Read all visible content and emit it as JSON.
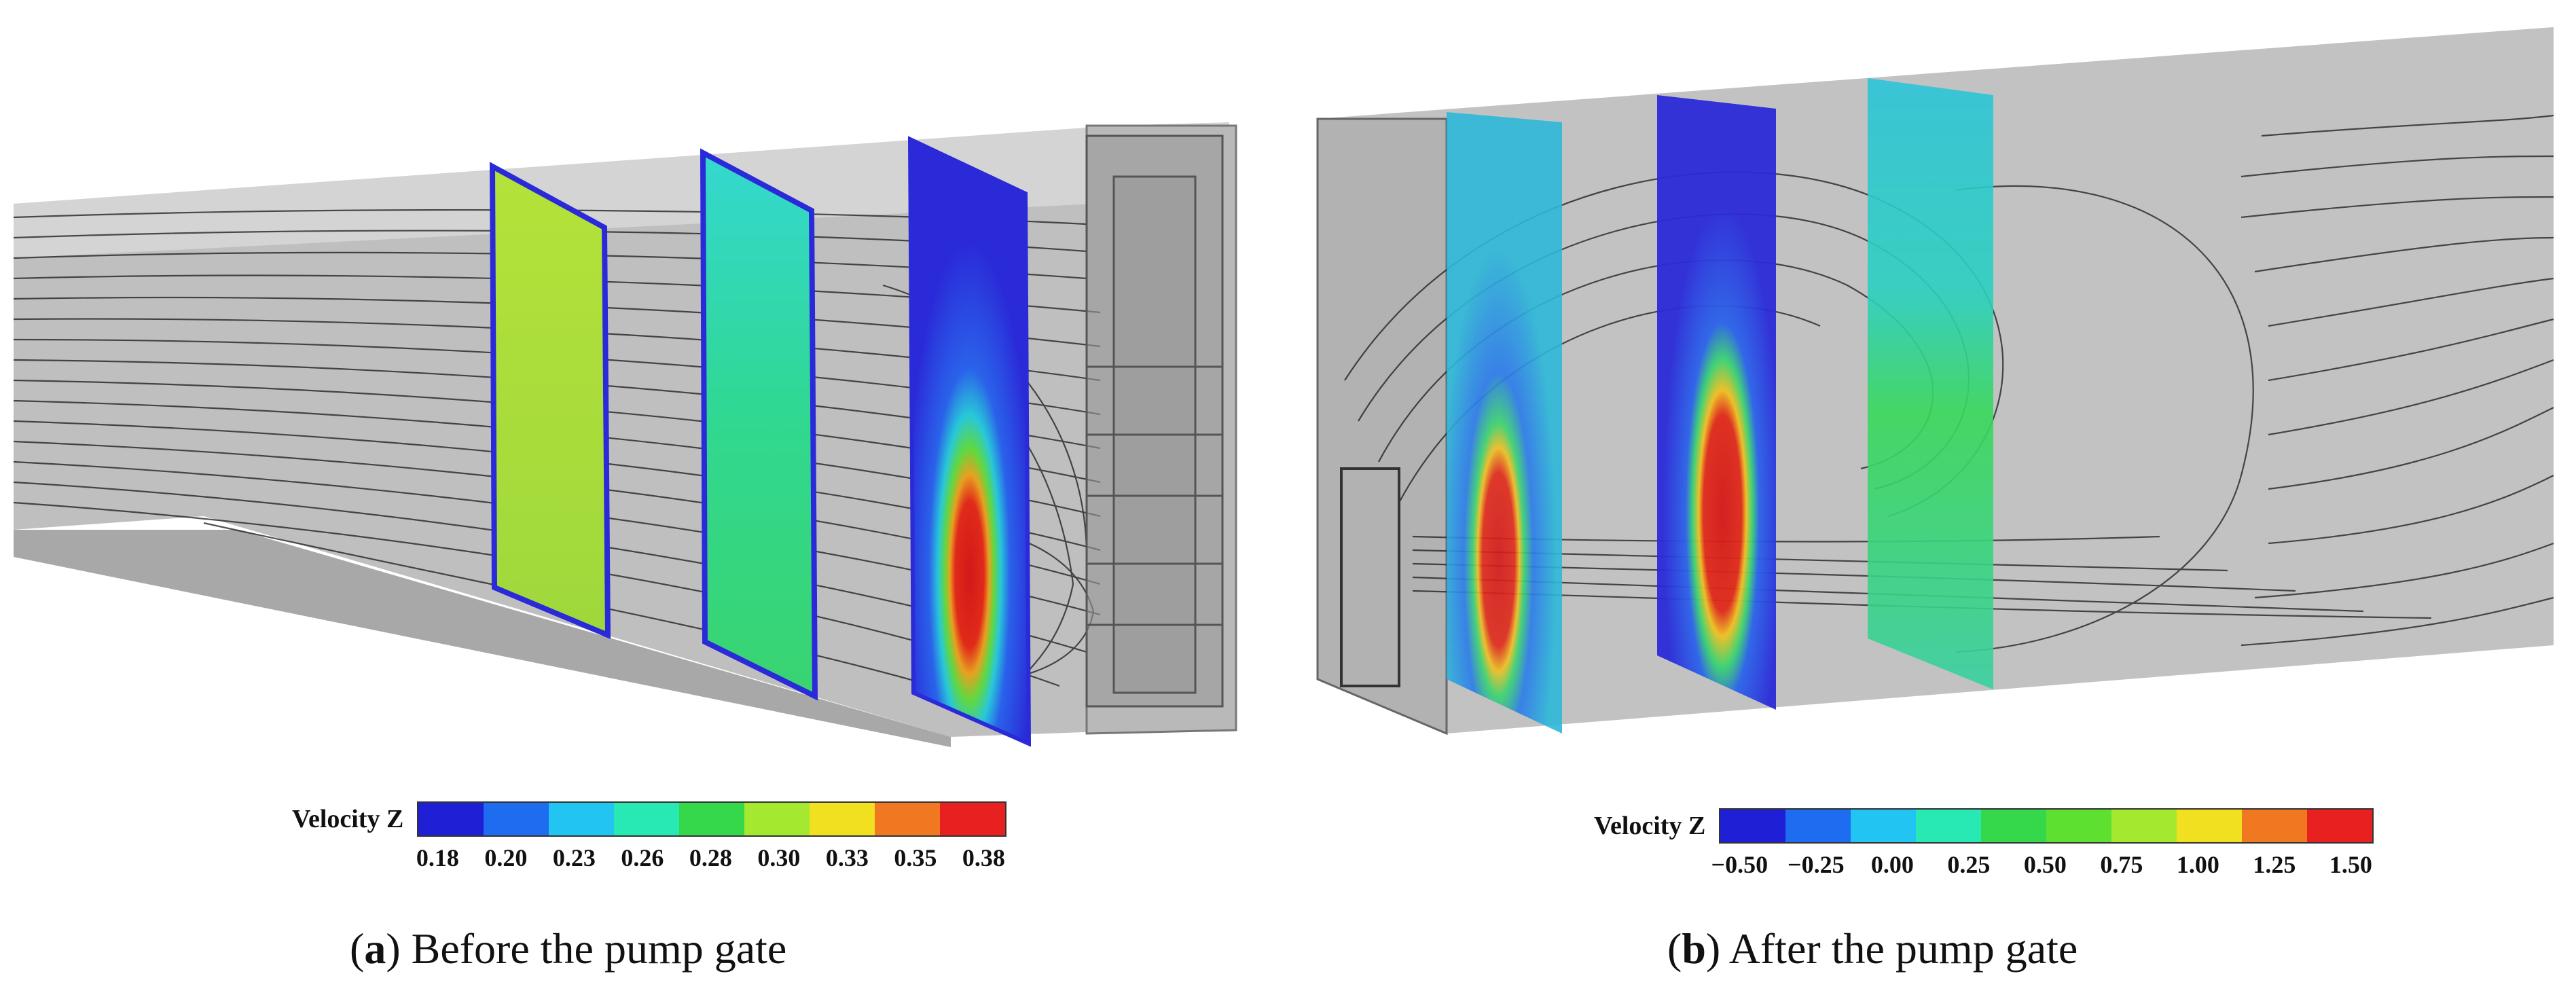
{
  "figure": {
    "panels": [
      {
        "id": "a",
        "letter": "a",
        "caption": " Before the pump gate",
        "legend": {
          "title": "Velocity Z",
          "colors": [
            "#1f1fd6",
            "#1e6cf0",
            "#22c4f2",
            "#28e8b4",
            "#34d84a",
            "#a4e830",
            "#f0e020",
            "#f07820",
            "#e82020"
          ],
          "ticks": [
            "0.18",
            "0.20",
            "0.23",
            "0.26",
            "0.28",
            "0.30",
            "0.33",
            "0.35",
            "0.38"
          ]
        }
      },
      {
        "id": "b",
        "letter": "b",
        "caption": " After the pump gate",
        "legend": {
          "title": "Velocity Z",
          "colors": [
            "#1f1fd6",
            "#1e6cf0",
            "#22c4f2",
            "#28e8b4",
            "#34d84a",
            "#5ee030",
            "#a4e830",
            "#f0e020",
            "#f07820",
            "#e82020"
          ],
          "ticks": [
            "−0.50",
            "−0.25",
            "0.00",
            "0.25",
            "0.50",
            "0.75",
            "1.00",
            "1.25",
            "1.50"
          ]
        }
      }
    ]
  }
}
